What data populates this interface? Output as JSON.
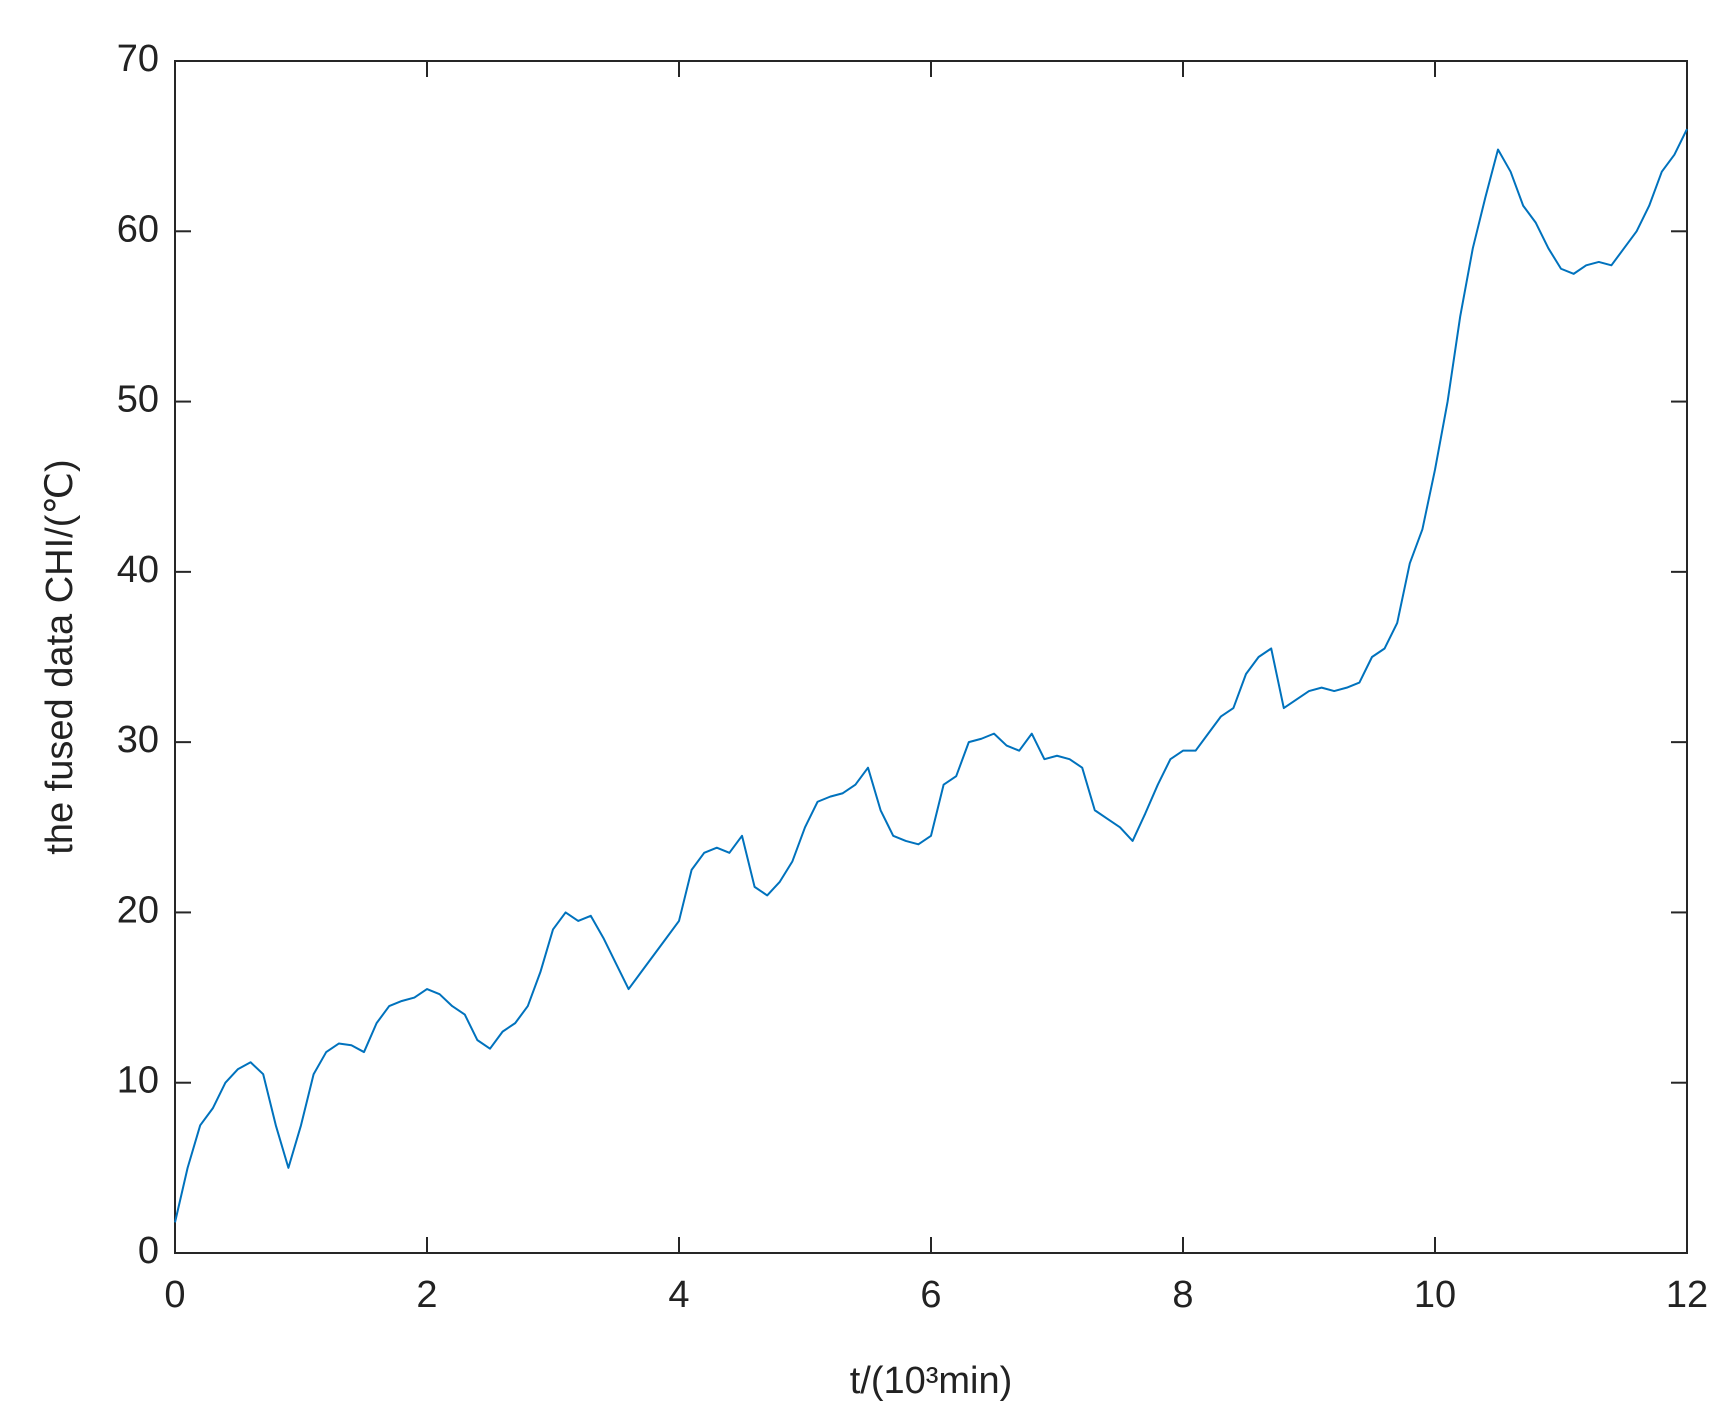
{
  "chart_data": {
    "type": "line",
    "x_label": "t/(10³min)",
    "y_label": "the fused data CHI/(℃)",
    "x": [
      0,
      0.1,
      0.2,
      0.3,
      0.4,
      0.5,
      0.6,
      0.7,
      0.8,
      0.9,
      1,
      1.1,
      1.2,
      1.3,
      1.4,
      1.5,
      1.6,
      1.7,
      1.8,
      1.9,
      2,
      2.1,
      2.2,
      2.3,
      2.4,
      2.5,
      2.6,
      2.7,
      2.8,
      2.9,
      3,
      3.1,
      3.2,
      3.3,
      3.4,
      3.5,
      3.6,
      3.7,
      3.8,
      3.9,
      4,
      4.1,
      4.2,
      4.3,
      4.4,
      4.5,
      4.6,
      4.7,
      4.8,
      4.9,
      5,
      5.1,
      5.2,
      5.3,
      5.4,
      5.5,
      5.6,
      5.7,
      5.8,
      5.9,
      6,
      6.1,
      6.2,
      6.3,
      6.4,
      6.5,
      6.6,
      6.7,
      6.8,
      6.9,
      7,
      7.1,
      7.2,
      7.3,
      7.4,
      7.5,
      7.6,
      7.7,
      7.8,
      7.9,
      8,
      8.1,
      8.2,
      8.3,
      8.4,
      8.5,
      8.6,
      8.7,
      8.8,
      8.9,
      9,
      9.1,
      9.2,
      9.3,
      9.4,
      9.5,
      9.6,
      9.7,
      9.8,
      9.9,
      10,
      10.1,
      10.2,
      10.3,
      10.4,
      10.5,
      10.6,
      10.7,
      10.8,
      10.9,
      11,
      11.1,
      11.2,
      11.3,
      11.4,
      11.5,
      11.6,
      11.7,
      11.8,
      11.9,
      12
    ],
    "series": [
      {
        "color": "#0072bd",
        "values": [
          1.8,
          5,
          7.5,
          8.5,
          10,
          10.8,
          11.2,
          10.5,
          7.5,
          5,
          7.5,
          10.5,
          11.8,
          12.3,
          12.2,
          11.8,
          13.5,
          14.5,
          14.8,
          15,
          15.5,
          15.2,
          14.5,
          14,
          12.5,
          12,
          13,
          13.5,
          14.5,
          16.5,
          19,
          20,
          19.5,
          19.8,
          18.5,
          17,
          15.5,
          16.5,
          17.5,
          18.5,
          19.5,
          22.5,
          23.5,
          23.8,
          23.5,
          24.5,
          21.5,
          21,
          21.8,
          23,
          25,
          26.5,
          26.8,
          27,
          27.5,
          28.5,
          26,
          24.5,
          24.2,
          24,
          24.5,
          27.5,
          28,
          30,
          30.2,
          30.5,
          29.8,
          29.5,
          30.5,
          29,
          29.2,
          29,
          28.5,
          26,
          25.5,
          25,
          24.2,
          25.8,
          27.5,
          29,
          29.5,
          29.5,
          30.5,
          31.5,
          32,
          34,
          35,
          35.5,
          32,
          32.5,
          33,
          33.2,
          33,
          33.2,
          33.5,
          35,
          35.5,
          37,
          40.5,
          42.5,
          46,
          50,
          55,
          59,
          62,
          64.8,
          63.5,
          61.5,
          60.5,
          59,
          57.8,
          57.5,
          58,
          58.2,
          58,
          59,
          60,
          61.5,
          63.5,
          64.5,
          66
        ]
      }
    ],
    "xlim": [
      0,
      12
    ],
    "xticks": [
      0,
      2,
      4,
      6,
      8,
      10,
      12
    ],
    "ylim": [
      0,
      70
    ],
    "yticks": [
      0,
      10,
      20,
      30,
      40,
      50,
      60,
      70
    ]
  }
}
